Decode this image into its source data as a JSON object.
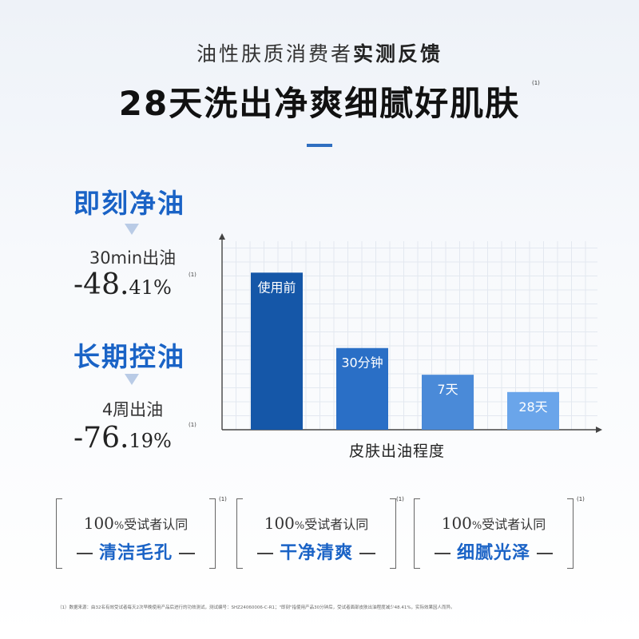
{
  "header": {
    "subtitle_regular": "油性肤质消费者",
    "subtitle_bold": "实测反馈",
    "title": "28天洗出净爽细腻好肌肤",
    "title_note": "(1)"
  },
  "stats": [
    {
      "heading": "即刻净油",
      "label": "30min出油",
      "value_big": "-48.",
      "value_small": "41%",
      "note": "(1)"
    },
    {
      "heading": "长期控油",
      "label": "4周出油",
      "value_big": "-76.",
      "value_small": "19%",
      "note": "(1)"
    }
  ],
  "chart_data": {
    "type": "bar",
    "categories": [
      "使用前",
      "30分钟",
      "7天",
      "28天"
    ],
    "values": [
      100,
      52,
      35,
      24
    ],
    "colors": [
      "#1557a8",
      "#2a6fc6",
      "#4a8ad8",
      "#6aa5ea"
    ],
    "xlabel": "皮肤出油程度",
    "ylabel": "",
    "ylim": [
      0,
      120
    ],
    "grid": true
  },
  "badges": [
    {
      "num": "100",
      "pct": "%",
      "text": "受试者认同",
      "claim": "清洁毛孔",
      "note": "(1)"
    },
    {
      "num": "100",
      "pct": "%",
      "text": "受试者认同",
      "claim": "干净清爽",
      "note": "(1)"
    },
    {
      "num": "100",
      "pct": "%",
      "text": "受试者认同",
      "claim": "细腻光泽",
      "note": "(1)"
    }
  ],
  "footnote": "（1）数据来源：由32名有效受试者每天2次早晚使用产品后进行的功效测试，测试编号：SHZ24060006-C-R1；\"即刻\"指使用产品30分钟后，受试者面部皮肤出油程度减少48.41%，实际效果因人而异。"
}
